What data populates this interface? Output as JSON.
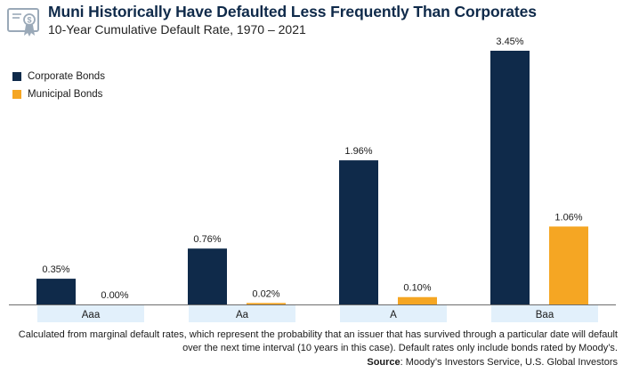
{
  "colors": {
    "corporate": "#0f2a4a",
    "municipal": "#f5a623",
    "axis_label_bg": "#e2f0fb",
    "logo": "#9aa9b8"
  },
  "logo_icon": "certificate-dollar-icon",
  "chart_data": {
    "type": "bar",
    "title": "Muni Historically Have Defaulted Less Frequently Than Corporates",
    "subtitle": "10-Year Cumulative Default Rate, 1970 – 2021",
    "categories": [
      "Aaa",
      "Aa",
      "A",
      "Baa"
    ],
    "series": [
      {
        "name": "Corporate Bonds",
        "values": [
          0.35,
          0.76,
          1.96,
          3.45
        ],
        "labels": [
          "0.35%",
          "0.76%",
          "1.96%",
          "3.45%"
        ]
      },
      {
        "name": "Municipal Bonds",
        "values": [
          0.0,
          0.02,
          0.1,
          1.06
        ],
        "labels": [
          "0.00%",
          "0.02%",
          "0.10%",
          "1.06%"
        ]
      }
    ],
    "ylim": [
      0,
      3.45
    ],
    "unit": "%",
    "xlabel": "",
    "ylabel": "",
    "grid": false,
    "legend_position": "top-left"
  },
  "footnote": "Calculated from marginal default rates, which represent the probability that an issuer that has survived through a particular date will default over the next time interval (10 years in this case). Default rates only include bonds rated by Moody’s.",
  "source": {
    "label": "Source",
    "text": ": Moody’s Investors Service, U.S. Global Investors"
  }
}
